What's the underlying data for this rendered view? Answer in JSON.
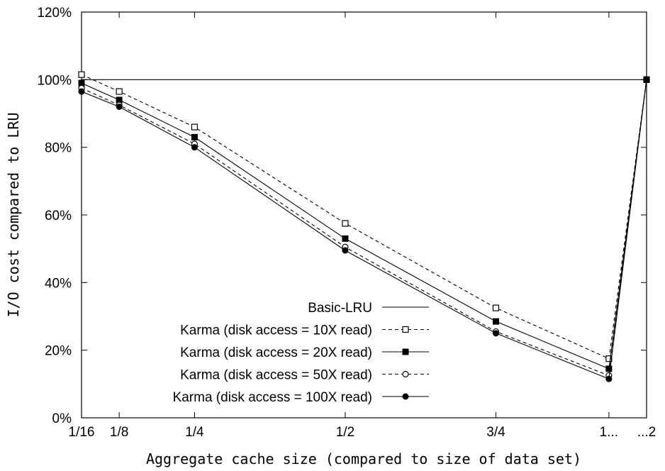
{
  "chart_data": {
    "type": "line",
    "xlabel": "Aggregate cache size (compared to size of data set)",
    "ylabel": "I/O cost compared to LRU",
    "categories": [
      "1/16",
      "1/8",
      "1/4",
      "1/2",
      "3/4",
      "1...",
      "...2"
    ],
    "x_positions": [
      0.0625,
      0.125,
      0.25,
      0.5,
      0.75,
      0.9375,
      1.0
    ],
    "xlim": [
      0.0625,
      1.0
    ],
    "ylim": [
      0,
      120
    ],
    "y_ticks": [
      0,
      20,
      40,
      60,
      80,
      100,
      120
    ],
    "y_tick_labels": [
      "0%",
      "20%",
      "40%",
      "60%",
      "80%",
      "100%",
      "120%"
    ],
    "legend_position": "bottom-center",
    "grid": false,
    "series": [
      {
        "name": "Basic-LRU",
        "values": [
          100,
          100,
          100,
          100,
          100,
          100,
          100
        ],
        "line": "solid",
        "marker": "none"
      },
      {
        "name": "Karma (disk access = 10X read)",
        "values": [
          101.5,
          96.5,
          86,
          57.5,
          32.5,
          17.5,
          100
        ],
        "line": "dashed",
        "marker": "open-square"
      },
      {
        "name": "Karma (disk access = 20X read)",
        "values": [
          99,
          94,
          83,
          53,
          28.5,
          14.5,
          100
        ],
        "line": "solid",
        "marker": "filled-square"
      },
      {
        "name": "Karma (disk access = 50X read)",
        "values": [
          97.5,
          92.5,
          81,
          50.5,
          25.5,
          12.5,
          100
        ],
        "line": "dashed",
        "marker": "open-circle"
      },
      {
        "name": "Karma (disk access = 100X read)",
        "values": [
          96.5,
          92,
          80,
          49.5,
          25,
          11.5,
          100
        ],
        "line": "solid",
        "marker": "filled-circle"
      }
    ]
  }
}
